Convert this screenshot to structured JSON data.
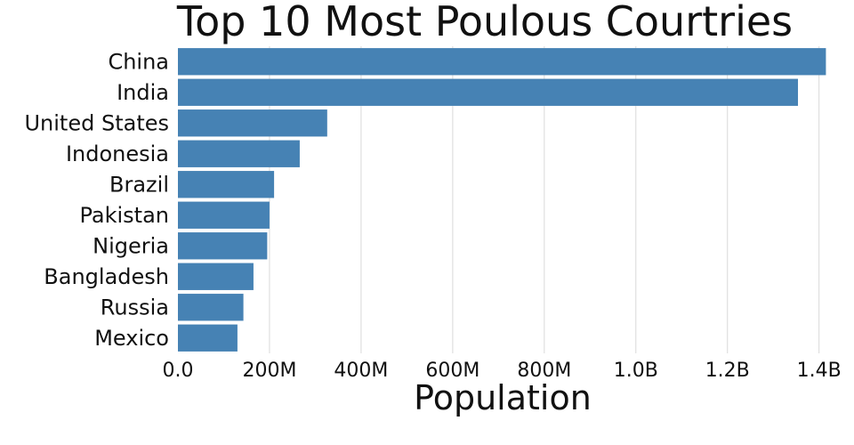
{
  "chart_data": {
    "type": "bar",
    "orientation": "horizontal",
    "title": "Top 10 Most Poulous Courtries",
    "xlabel": "Population",
    "ylabel": "",
    "categories": [
      "China",
      "India",
      "United States",
      "Indonesia",
      "Brazil",
      "Pakistan",
      "Nigeria",
      "Bangladesh",
      "Russia",
      "Mexico"
    ],
    "values": [
      1415000000,
      1354000000,
      326000000,
      266000000,
      210000000,
      200000000,
      195000000,
      165000000,
      143000000,
      130000000
    ],
    "xlim": [
      0,
      1420000000
    ],
    "xticks": [
      0,
      200000000,
      400000000,
      600000000,
      800000000,
      1000000000,
      1200000000,
      1400000000
    ],
    "xtick_labels": [
      "0.0",
      "200M",
      "400M",
      "600M",
      "800M",
      "1.0B",
      "1.2B",
      "1.4B"
    ],
    "grid": "vertical",
    "bar_color": "#4682b4"
  }
}
